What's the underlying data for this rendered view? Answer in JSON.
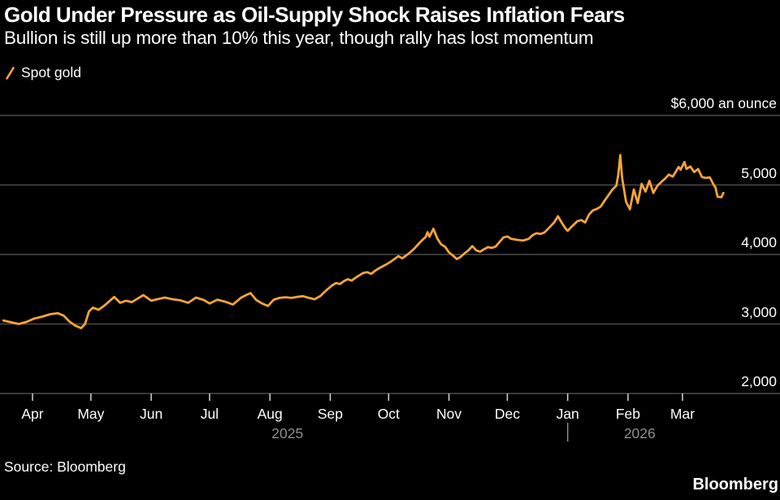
{
  "header": {
    "title": "Gold Under Pressure as Oil-Supply Shock Raises Inflation Fears",
    "subtitle": "Bullion is still up more than 10% this year, though rally has lost momentum"
  },
  "legend": {
    "label": "Spot gold"
  },
  "footer": {
    "source": "Source: Bloomberg",
    "brand": "Bloomberg"
  },
  "colors": {
    "background": "#000000",
    "text": "#FFFFFF",
    "line": "#F7A437",
    "grid": "#4A4A4A",
    "tick": "#D6D6D6",
    "year_text": "#8E8E8E"
  },
  "chart_data": {
    "type": "line",
    "title": "Gold Under Pressure as Oil-Supply Shock Raises Inflation Fears",
    "subtitle": "Bullion is still up more than 10% this year, though rally has lost momentum",
    "legend_entries": [
      "Spot gold"
    ],
    "grid": true,
    "y_axis": {
      "side": "right",
      "range": [
        2000,
        6000
      ],
      "ticks": [
        {
          "value": 6000,
          "label": "$6,000 an ounce"
        },
        {
          "value": 5000,
          "label": "5,000"
        },
        {
          "value": 4000,
          "label": "4,000"
        },
        {
          "value": 3000,
          "label": "3,000"
        },
        {
          "value": 2000,
          "label": "2,000"
        }
      ]
    },
    "x_axis": {
      "months": [
        {
          "label": "Apr",
          "day": 0
        },
        {
          "label": "May",
          "day": 30
        },
        {
          "label": "Jun",
          "day": 61
        },
        {
          "label": "Jul",
          "day": 91
        },
        {
          "label": "Aug",
          "day": 122
        },
        {
          "label": "Sep",
          "day": 153
        },
        {
          "label": "Oct",
          "day": 183
        },
        {
          "label": "Nov",
          "day": 214
        },
        {
          "label": "Dec",
          "day": 244
        },
        {
          "label": "Jan",
          "day": 275
        },
        {
          "label": "Feb",
          "day": 306
        },
        {
          "label": "Mar",
          "day": 334
        }
      ],
      "years": [
        {
          "label": "2025",
          "center_day": 131
        },
        {
          "label": "2026",
          "center_day": 312
        }
      ],
      "year_divider_day": 275
    },
    "series": [
      {
        "name": "Spot gold",
        "color": "#F7A437",
        "points_day_price": [
          [
            -15,
            3050
          ],
          [
            -11,
            3025
          ],
          [
            -7,
            3000
          ],
          [
            -3,
            3030
          ],
          [
            1,
            3080
          ],
          [
            5,
            3105
          ],
          [
            9,
            3140
          ],
          [
            13,
            3155
          ],
          [
            16,
            3120
          ],
          [
            19,
            3035
          ],
          [
            22,
            2975
          ],
          [
            25,
            2940
          ],
          [
            27,
            3000
          ],
          [
            29,
            3180
          ],
          [
            31,
            3235
          ],
          [
            34,
            3205
          ],
          [
            37,
            3265
          ],
          [
            40,
            3340
          ],
          [
            42,
            3390
          ],
          [
            45,
            3305
          ],
          [
            48,
            3335
          ],
          [
            51,
            3315
          ],
          [
            54,
            3365
          ],
          [
            57,
            3415
          ],
          [
            59,
            3375
          ],
          [
            61,
            3335
          ],
          [
            64,
            3355
          ],
          [
            68,
            3380
          ],
          [
            72,
            3355
          ],
          [
            76,
            3340
          ],
          [
            80,
            3305
          ],
          [
            84,
            3380
          ],
          [
            88,
            3345
          ],
          [
            91,
            3295
          ],
          [
            95,
            3350
          ],
          [
            99,
            3320
          ],
          [
            103,
            3280
          ],
          [
            107,
            3375
          ],
          [
            110,
            3420
          ],
          [
            112,
            3445
          ],
          [
            115,
            3345
          ],
          [
            118,
            3295
          ],
          [
            121,
            3260
          ],
          [
            124,
            3350
          ],
          [
            127,
            3375
          ],
          [
            130,
            3385
          ],
          [
            133,
            3375
          ],
          [
            136,
            3390
          ],
          [
            139,
            3400
          ],
          [
            142,
            3375
          ],
          [
            145,
            3355
          ],
          [
            148,
            3405
          ],
          [
            150,
            3460
          ],
          [
            152,
            3510
          ],
          [
            154,
            3555
          ],
          [
            156,
            3590
          ],
          [
            158,
            3575
          ],
          [
            160,
            3615
          ],
          [
            162,
            3645
          ],
          [
            164,
            3625
          ],
          [
            166,
            3665
          ],
          [
            168,
            3700
          ],
          [
            170,
            3735
          ],
          [
            172,
            3745
          ],
          [
            174,
            3720
          ],
          [
            176,
            3765
          ],
          [
            178,
            3800
          ],
          [
            180,
            3830
          ],
          [
            182,
            3860
          ],
          [
            184,
            3895
          ],
          [
            186,
            3935
          ],
          [
            188,
            3975
          ],
          [
            190,
            3945
          ],
          [
            192,
            3985
          ],
          [
            194,
            4030
          ],
          [
            196,
            4080
          ],
          [
            198,
            4140
          ],
          [
            200,
            4200
          ],
          [
            202,
            4250
          ],
          [
            203,
            4320
          ],
          [
            204,
            4255
          ],
          [
            206,
            4370
          ],
          [
            208,
            4230
          ],
          [
            210,
            4145
          ],
          [
            212,
            4110
          ],
          [
            214,
            4030
          ],
          [
            216,
            3985
          ],
          [
            218,
            3935
          ],
          [
            220,
            3965
          ],
          [
            222,
            4015
          ],
          [
            224,
            4060
          ],
          [
            226,
            4120
          ],
          [
            228,
            4060
          ],
          [
            230,
            4040
          ],
          [
            232,
            4075
          ],
          [
            234,
            4105
          ],
          [
            236,
            4095
          ],
          [
            238,
            4115
          ],
          [
            240,
            4180
          ],
          [
            242,
            4245
          ],
          [
            244,
            4260
          ],
          [
            246,
            4225
          ],
          [
            249,
            4210
          ],
          [
            252,
            4200
          ],
          [
            255,
            4225
          ],
          [
            257,
            4280
          ],
          [
            259,
            4305
          ],
          [
            261,
            4295
          ],
          [
            263,
            4315
          ],
          [
            266,
            4400
          ],
          [
            268,
            4460
          ],
          [
            270,
            4550
          ],
          [
            272,
            4455
          ],
          [
            274,
            4370
          ],
          [
            275,
            4340
          ],
          [
            277,
            4400
          ],
          [
            280,
            4480
          ],
          [
            282,
            4495
          ],
          [
            284,
            4460
          ],
          [
            286,
            4575
          ],
          [
            288,
            4635
          ],
          [
            290,
            4655
          ],
          [
            292,
            4690
          ],
          [
            294,
            4775
          ],
          [
            296,
            4855
          ],
          [
            298,
            4935
          ],
          [
            300,
            4990
          ],
          [
            301,
            5150
          ],
          [
            302,
            5430
          ],
          [
            303,
            5100
          ],
          [
            305,
            4760
          ],
          [
            307,
            4650
          ],
          [
            309,
            4935
          ],
          [
            311,
            4740
          ],
          [
            313,
            5015
          ],
          [
            315,
            4905
          ],
          [
            317,
            5060
          ],
          [
            319,
            4885
          ],
          [
            321,
            4985
          ],
          [
            323,
            5040
          ],
          [
            325,
            5090
          ],
          [
            327,
            5150
          ],
          [
            329,
            5120
          ],
          [
            331,
            5210
          ],
          [
            332,
            5260
          ],
          [
            333,
            5220
          ],
          [
            335,
            5330
          ],
          [
            336,
            5230
          ],
          [
            338,
            5265
          ],
          [
            340,
            5185
          ],
          [
            342,
            5230
          ],
          [
            344,
            5115
          ],
          [
            346,
            5100
          ],
          [
            348,
            5110
          ],
          [
            350,
            5005
          ],
          [
            351,
            4960
          ],
          [
            352,
            4830
          ],
          [
            354,
            4825
          ],
          [
            355,
            4885
          ]
        ]
      }
    ]
  }
}
